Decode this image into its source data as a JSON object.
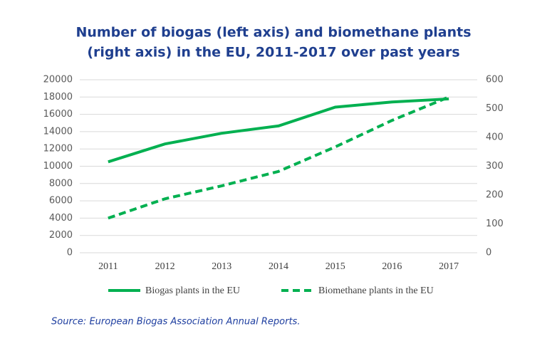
{
  "chart_data": {
    "type": "line",
    "title": [
      "Number of biogas (left axis) and biomethane plants",
      "(right axis) in the EU, 2011-2017 over past years"
    ],
    "categories": [
      "2011",
      "2012",
      "2013",
      "2014",
      "2015",
      "2016",
      "2017"
    ],
    "series": [
      {
        "name": "Biogas plants in the EU",
        "color": "#00b050",
        "line_style": "solid",
        "axis": "y",
        "values": [
          10508,
          12575,
          13812,
          14661,
          16834,
          17432,
          17783
        ]
      },
      {
        "name": "Biomethane plants in the EU",
        "color": "#00b050",
        "line_style": "dashed",
        "axis": "y2",
        "values": [
          120,
          187,
          232,
          282,
          367,
          459,
          540
        ]
      }
    ],
    "ylim": [
      0,
      20000
    ],
    "yticks": [
      0,
      2000,
      4000,
      6000,
      8000,
      10000,
      12000,
      14000,
      16000,
      18000,
      20000
    ],
    "y2lim": [
      0,
      600
    ],
    "y2ticks": [
      0,
      100,
      200,
      300,
      400,
      500,
      600
    ],
    "grid": true,
    "legend": "bottom",
    "source": "Source:  European Biogas Association Annual Reports."
  }
}
